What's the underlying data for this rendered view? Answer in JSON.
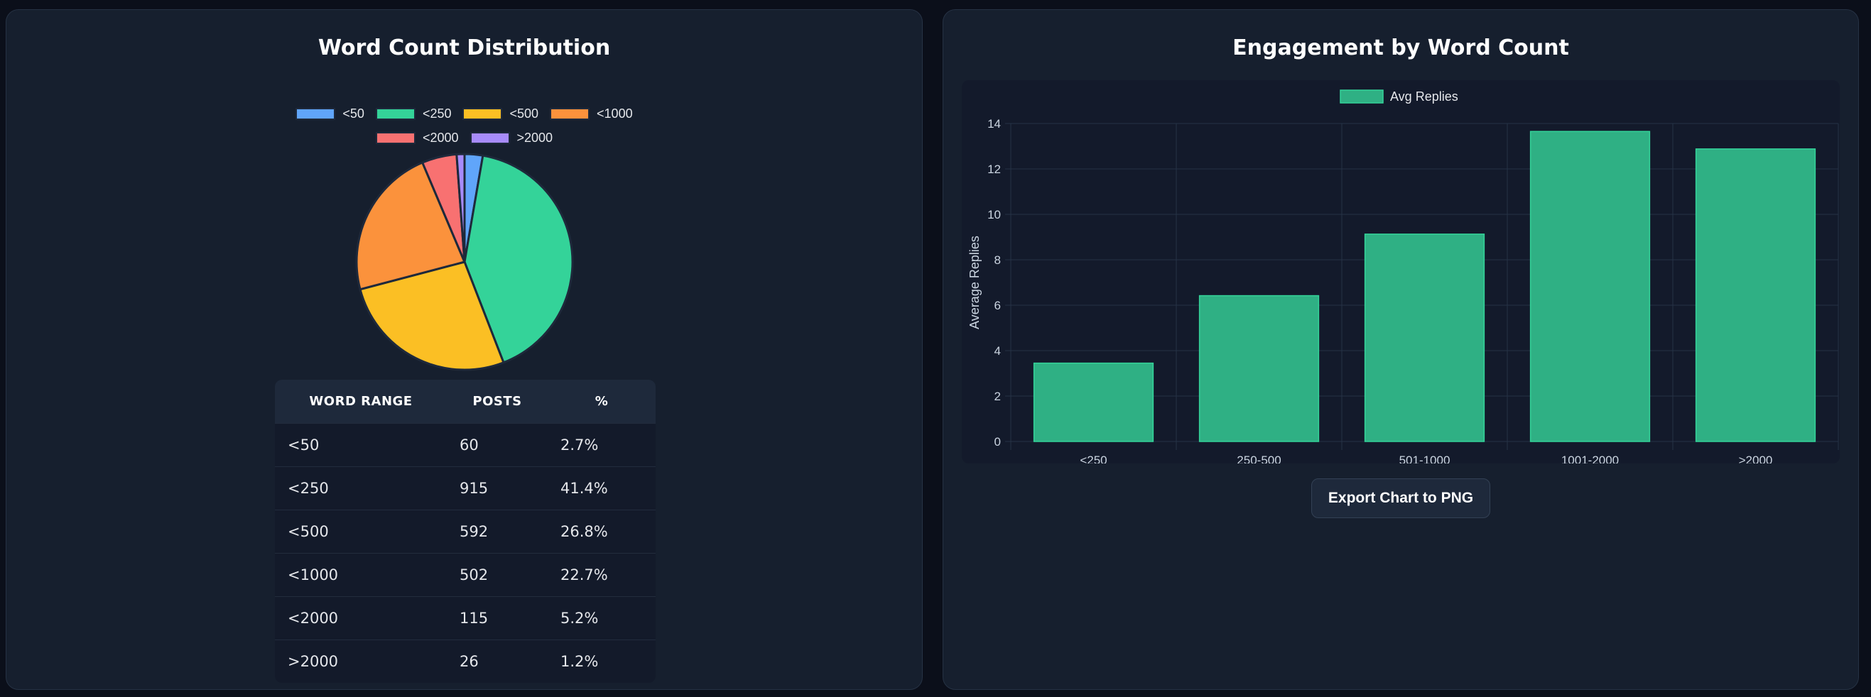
{
  "left_panel": {
    "title": "Word Count Distribution",
    "table": {
      "headers": [
        "WORD RANGE",
        "POSTS",
        "%"
      ],
      "rows": [
        [
          "<50",
          "60",
          "2.7%"
        ],
        [
          "<250",
          "915",
          "41.4%"
        ],
        [
          "<500",
          "592",
          "26.8%"
        ],
        [
          "<1000",
          "502",
          "22.7%"
        ],
        [
          "<2000",
          "115",
          "5.2%"
        ],
        [
          ">2000",
          "26",
          "1.2%"
        ]
      ]
    }
  },
  "right_panel": {
    "title": "Engagement by Word Count",
    "export_label": "Export Chart to PNG"
  },
  "chart_data": [
    {
      "type": "pie",
      "title": "Word Count Distribution",
      "legend": "top",
      "categories": [
        "<50",
        "<250",
        "<500",
        "<1000",
        "<2000",
        ">2000"
      ],
      "values": [
        60,
        915,
        592,
        502,
        115,
        26
      ],
      "colors": [
        "#60a5fa",
        "#34d399",
        "#fbbf24",
        "#fb923c",
        "#f87171",
        "#a78bfa"
      ]
    },
    {
      "type": "bar",
      "title": "Engagement by Word Count",
      "legend": "top",
      "series": [
        {
          "name": "Avg Replies",
          "values": [
            3.45,
            6.42,
            9.13,
            13.65,
            12.88
          ],
          "color": "#2fb084"
        }
      ],
      "categories": [
        "<250",
        "250-500",
        "501-1000",
        "1001-2000",
        ">2000"
      ],
      "ylabel": "Average Replies",
      "xlabel": "",
      "ylim": [
        0,
        14
      ],
      "yticks": [
        0,
        2,
        4,
        6,
        8,
        10,
        12,
        14
      ],
      "grid": true
    }
  ]
}
